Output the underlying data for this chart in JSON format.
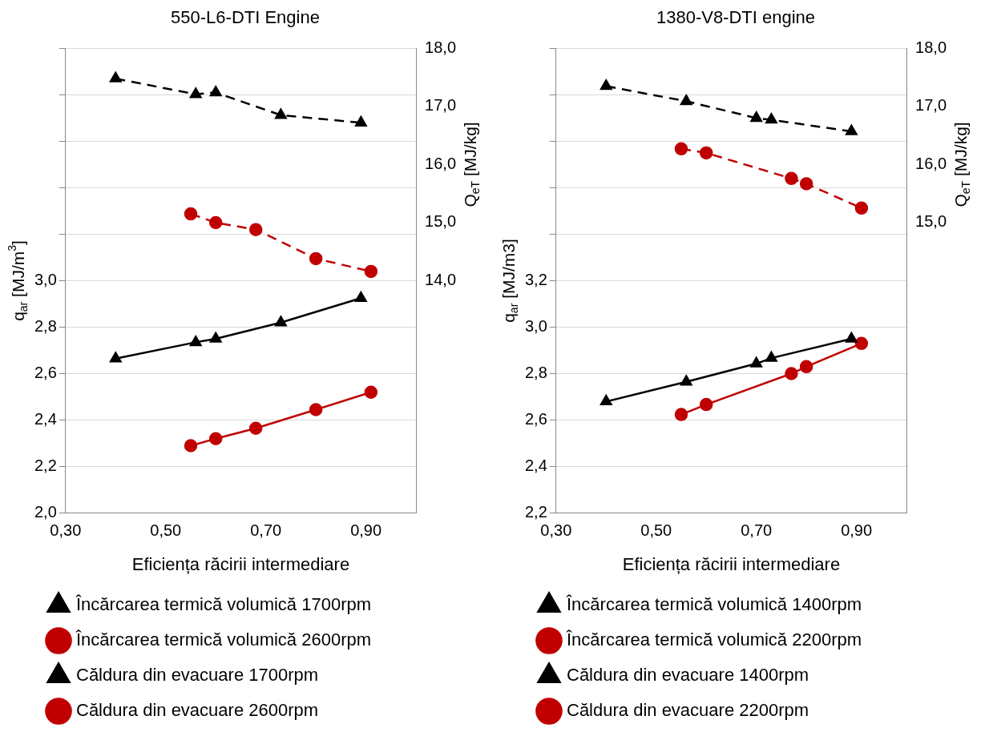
{
  "chart_data": [
    {
      "type": "line",
      "title": "550-L6-DTI Engine",
      "xlabel": "Eficiența răcirii intermediare",
      "ylabel": "q$_{ar}$ [MJ/m$^{3}$]",
      "y2label": "Q$_{eT}$ [MJ/kg]",
      "legend": "bottom",
      "grid": "y",
      "xlim": [
        0.3,
        1.0
      ],
      "xticks": [
        {
          "value": 0.3,
          "label": "0,30"
        },
        {
          "value": 0.5,
          "label": "0,50"
        },
        {
          "value": 0.7,
          "label": "0,70"
        },
        {
          "value": 0.9,
          "label": "0,90"
        }
      ],
      "ylim": [
        2.0,
        4.0
      ],
      "yticks": [
        {
          "value": 2.0,
          "label": "2,0"
        },
        {
          "value": 2.2,
          "label": "2,2"
        },
        {
          "value": 2.4,
          "label": "2,4"
        },
        {
          "value": 2.6,
          "label": "2,6"
        },
        {
          "value": 2.8,
          "label": "2,8"
        },
        {
          "value": 3.0,
          "label": "3,0"
        },
        {
          "value": 3.2,
          "label": null
        },
        {
          "value": 3.4,
          "label": null
        },
        {
          "value": 3.6,
          "label": null
        },
        {
          "value": 3.8,
          "label": null
        },
        {
          "value": 4.0,
          "label": null
        }
      ],
      "y2lim": [
        10,
        18
      ],
      "y2ticks": [
        {
          "value": 14,
          "label": "14,0"
        },
        {
          "value": 15,
          "label": "15,0"
        },
        {
          "value": 16,
          "label": "16,0"
        },
        {
          "value": 17,
          "label": "17,0"
        },
        {
          "value": 18,
          "label": "18,0"
        }
      ],
      "series": [
        {
          "name": "Încărcarea termică volumică 1700rpm",
          "color": "#000000",
          "axis": "y",
          "line_style": "solid",
          "marker": "triangle",
          "x": [
            0.4,
            0.56,
            0.6,
            0.73,
            0.89
          ],
          "values": [
            2.665,
            2.735,
            2.75,
            2.82,
            2.925
          ]
        },
        {
          "name": "Încărcarea termică volumică 2600rpm",
          "color": "#c00000",
          "axis": "y",
          "line_style": "solid",
          "marker": "circle",
          "x": [
            0.55,
            0.6,
            0.68,
            0.8,
            0.91
          ],
          "values": [
            2.29,
            2.32,
            2.365,
            2.445,
            2.52
          ]
        },
        {
          "name": "Căldura din evacuare 1700rpm",
          "color": "#000000",
          "axis": "y2",
          "line_style": "dashed",
          "marker": "triangle",
          "x": [
            0.4,
            0.56,
            0.6,
            0.73,
            0.89
          ],
          "values": [
            17.48,
            17.21,
            17.24,
            16.85,
            16.72
          ]
        },
        {
          "name": "Căldura din evacuare 2600rpm",
          "color": "#c00000",
          "axis": "y2",
          "line_style": "dashed",
          "marker": "circle",
          "x": [
            0.55,
            0.6,
            0.68,
            0.8,
            0.91
          ],
          "values": [
            15.15,
            15.0,
            14.88,
            14.38,
            14.16
          ]
        }
      ]
    },
    {
      "type": "line",
      "title": "1380-V8-DTI engine",
      "xlabel": "Eficiența răcirii intermediare",
      "ylabel": "q$_{ar}$ [MJ/m3]",
      "y2label": "Q$_{eT}$ [MJ/kg]",
      "legend": "bottom",
      "grid": "y",
      "xlim": [
        0.3,
        1.0
      ],
      "xticks": [
        {
          "value": 0.3,
          "label": "0,30"
        },
        {
          "value": 0.5,
          "label": "0,50"
        },
        {
          "value": 0.7,
          "label": "0,70"
        },
        {
          "value": 0.9,
          "label": "0,90"
        }
      ],
      "ylim": [
        2.2,
        4.2
      ],
      "yticks": [
        {
          "value": 2.2,
          "label": "2,2"
        },
        {
          "value": 2.4,
          "label": "2,4"
        },
        {
          "value": 2.6,
          "label": "2,6"
        },
        {
          "value": 2.8,
          "label": "2,8"
        },
        {
          "value": 3.0,
          "label": "3,0"
        },
        {
          "value": 3.2,
          "label": "3,2"
        },
        {
          "value": 3.4,
          "label": null
        },
        {
          "value": 3.6,
          "label": null
        },
        {
          "value": 3.8,
          "label": null
        },
        {
          "value": 4.0,
          "label": null
        },
        {
          "value": 4.2,
          "label": null
        }
      ],
      "y2lim": [
        10,
        18
      ],
      "y2ticks": [
        {
          "value": 15,
          "label": "15,0"
        },
        {
          "value": 16,
          "label": "16,0"
        },
        {
          "value": 17,
          "label": "17,0"
        },
        {
          "value": 18,
          "label": "18,0"
        }
      ],
      "series": [
        {
          "name": "Încărcarea termică volumică 1400rpm",
          "color": "#000000",
          "axis": "y",
          "line_style": "solid",
          "marker": "triangle",
          "x": [
            0.4,
            0.56,
            0.7,
            0.73,
            0.89
          ],
          "values": [
            2.68,
            2.765,
            2.843,
            2.867,
            2.95
          ]
        },
        {
          "name": "Încărcarea termică volumică 2200rpm",
          "color": "#c00000",
          "axis": "y",
          "line_style": "solid",
          "marker": "circle",
          "x": [
            0.55,
            0.6,
            0.77,
            0.8,
            0.91
          ],
          "values": [
            2.624,
            2.667,
            2.8,
            2.83,
            2.93
          ]
        },
        {
          "name": "Căldura din evacuare 1400rpm",
          "color": "#000000",
          "axis": "y2",
          "line_style": "dashed",
          "marker": "triangle",
          "x": [
            0.4,
            0.56,
            0.7,
            0.73,
            0.89
          ],
          "values": [
            17.35,
            17.09,
            16.8,
            16.77,
            16.57
          ]
        },
        {
          "name": "Căldura din evacuare 2200rpm",
          "color": "#c00000",
          "axis": "y2",
          "line_style": "dashed",
          "marker": "circle",
          "x": [
            0.55,
            0.6,
            0.77,
            0.8,
            0.91
          ],
          "values": [
            16.27,
            16.2,
            15.76,
            15.67,
            15.25
          ]
        }
      ]
    }
  ]
}
